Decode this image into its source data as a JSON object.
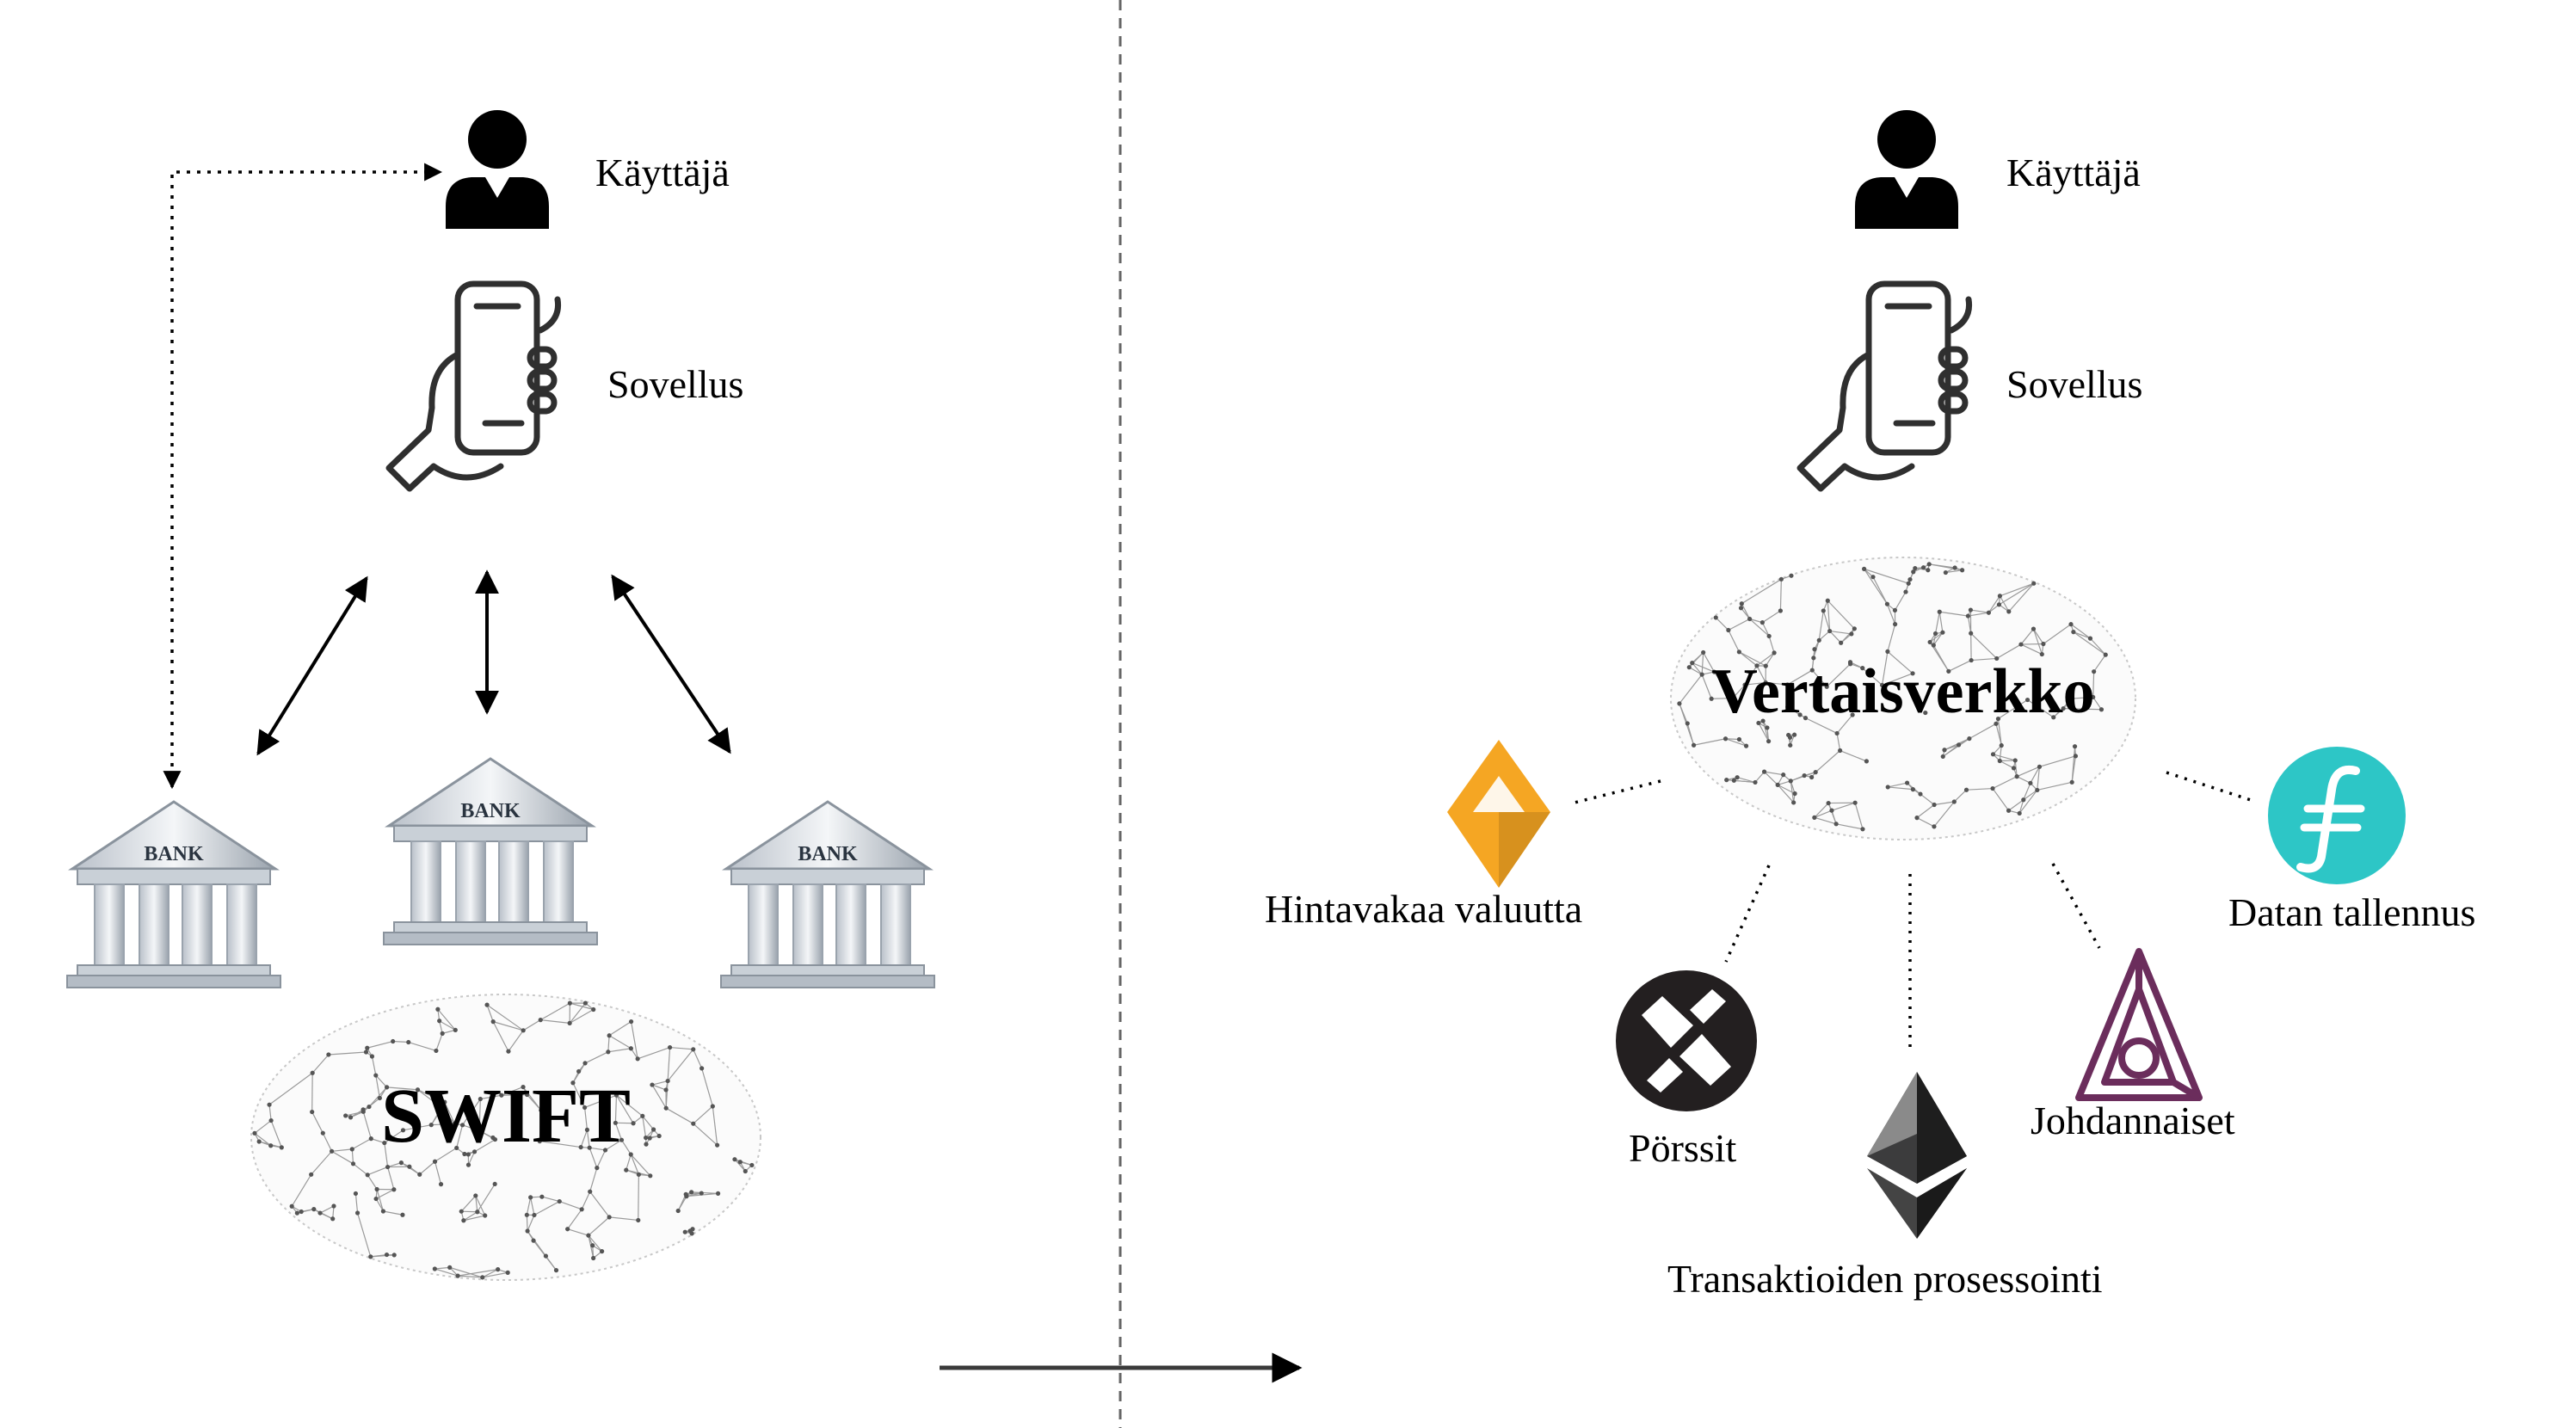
{
  "left": {
    "user_label": "Käyttäjä",
    "app_label": "Sovellus",
    "bank_label": "BANK",
    "network_label": "SWIFT"
  },
  "right": {
    "user_label": "Käyttäjä",
    "app_label": "Sovellus",
    "network_label": "Vertaisverkko",
    "services": {
      "stablecoin": "Hintavakaa valuutta",
      "storage": "Datan tallennus",
      "exchanges": "Pörssit",
      "transactions": "Transaktioiden prosessointi",
      "derivatives": "Johdannaiset"
    }
  },
  "colors": {
    "stablecoin": "#F5A623",
    "storage": "#2DC6C6",
    "exchanges": "#231F20",
    "transactions": "#3C3C3D",
    "derivatives": "#6B2D5C"
  }
}
